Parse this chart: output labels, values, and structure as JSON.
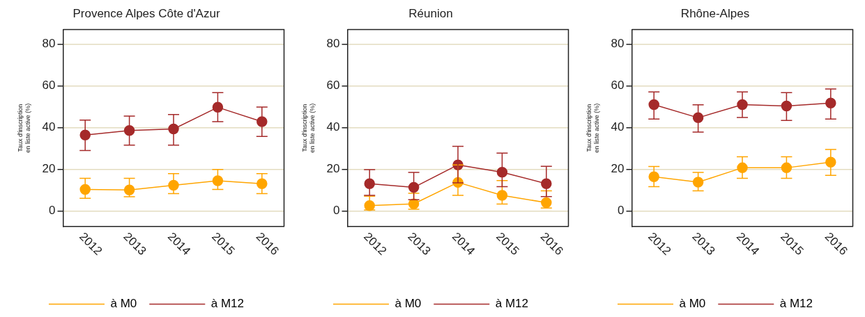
{
  "chart_data": [
    {
      "type": "line",
      "title": "Provence Alpes Côte d'Azur",
      "ylabel": "Taux d'inscription en liste active (%)",
      "categories": [
        "2012",
        "2013",
        "2014",
        "2015",
        "2016"
      ],
      "ylim": [
        -7.5,
        87
      ],
      "yticks": [
        0,
        20,
        40,
        60,
        80
      ],
      "grid": "y",
      "legend": "bottom",
      "marker": "circle",
      "series": [
        {
          "name": "à M0",
          "color": "#ffa500",
          "values": [
            10.3,
            10.1,
            12.3,
            14.5,
            13.1
          ],
          "errors": [
            [
              6.1,
              15.7
            ],
            [
              6.8,
              15.7
            ],
            [
              8.3,
              17.9
            ],
            [
              10.3,
              19.9
            ],
            [
              8.3,
              17.9
            ]
          ]
        },
        {
          "name": "à M12",
          "color": "#a52a2a",
          "values": [
            36.4,
            38.6,
            39.3,
            49.7,
            42.8
          ],
          "errors": [
            [
              29.0,
              43.6
            ],
            [
              31.6,
              45.5
            ],
            [
              31.6,
              46.2
            ],
            [
              42.8,
              56.7
            ],
            [
              35.7,
              49.8
            ]
          ]
        }
      ]
    },
    {
      "type": "line",
      "title": "Réunion",
      "ylabel": "Taux d'inscription en liste active (%)",
      "categories": [
        "2012",
        "2013",
        "2014",
        "2015",
        "2016"
      ],
      "ylim": [
        -7.5,
        87
      ],
      "yticks": [
        0,
        20,
        40,
        60,
        80
      ],
      "grid": "y",
      "legend": "bottom",
      "marker": "circle",
      "series": [
        {
          "name": "à M0",
          "color": "#ffa500",
          "values": [
            2.6,
            3.4,
            13.7,
            7.5,
            4.0
          ],
          "errors": [
            [
              0.5,
              7.1
            ],
            [
              0.8,
              8.5
            ],
            [
              7.5,
              22.1
            ],
            [
              3.3,
              14.6
            ],
            [
              1.4,
              9.7
            ]
          ]
        },
        {
          "name": "à M12",
          "color": "#a52a2a",
          "values": [
            13.1,
            11.3,
            22.1,
            18.6,
            13.1
          ],
          "errors": [
            [
              7.5,
              19.8
            ],
            [
              5.4,
              18.5
            ],
            [
              13.5,
              31.0
            ],
            [
              11.7,
              27.7
            ],
            [
              6.9,
              21.4
            ]
          ]
        }
      ]
    },
    {
      "type": "line",
      "title": "Rhône-Alpes",
      "ylabel": "Taux d'inscription en liste active (%)",
      "categories": [
        "2012",
        "2013",
        "2014",
        "2015",
        "2016"
      ],
      "ylim": [
        -7.5,
        87
      ],
      "yticks": [
        0,
        20,
        40,
        60,
        80
      ],
      "grid": "y",
      "legend": "bottom",
      "marker": "circle",
      "series": [
        {
          "name": "à M0",
          "color": "#ffa500",
          "values": [
            16.4,
            13.8,
            20.7,
            20.7,
            23.4
          ],
          "errors": [
            [
              11.7,
              21.3
            ],
            [
              9.7,
              18.5
            ],
            [
              15.7,
              26.0
            ],
            [
              15.7,
              26.0
            ],
            [
              17.1,
              29.5
            ]
          ]
        },
        {
          "name": "à M12",
          "color": "#a52a2a",
          "values": [
            51.0,
            44.7,
            51.0,
            50.3,
            51.7
          ],
          "errors": [
            [
              44.1,
              57.1
            ],
            [
              37.8,
              50.9
            ],
            [
              44.8,
              57.1
            ],
            [
              43.4,
              56.7
            ],
            [
              44.1,
              58.5
            ]
          ]
        }
      ]
    }
  ]
}
